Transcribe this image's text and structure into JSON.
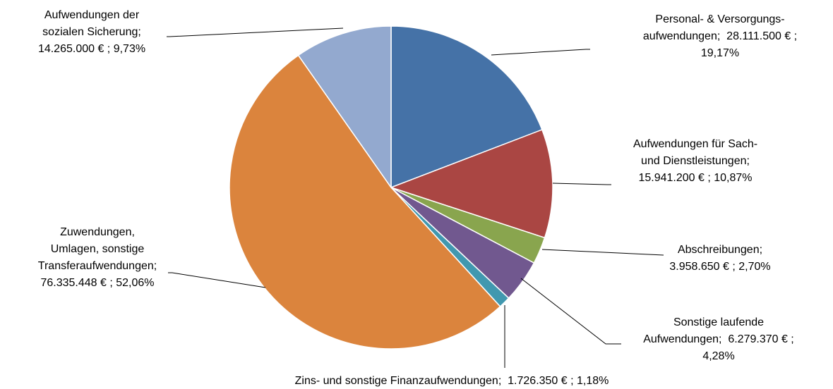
{
  "chart_data": {
    "type": "pie",
    "values": [
      28111500,
      15941200,
      3958650,
      6279370,
      1726350,
      76335448,
      14265000
    ],
    "colors": [
      "#4572a7",
      "#aa4643",
      "#89a54e",
      "#71588f",
      "#4198af",
      "#db843d",
      "#93a9cf"
    ],
    "value_labels": [
      [
        "Personal- & Versorgungs-",
        "aufwendungen;  28.111.500 € ;",
        "19,17%"
      ],
      [
        "Aufwendungen für Sach-",
        "und Dienstleistungen;",
        "15.941.200 € ; 10,87%"
      ],
      [
        "Abschreibungen;",
        "3.958.650 € ; 2,70%"
      ],
      [
        "Sonstige laufende",
        "Aufwendungen;  6.279.370 € ;",
        "4,28%"
      ],
      [
        "Zins- und sonstige Finanzaufwendungen;  1.726.350 € ; 1,18%"
      ],
      [
        "Zuwendungen,",
        "Umlagen, sonstige",
        "Transferaufwendungen;",
        "76.335.448 € ; 52,06%"
      ],
      [
        "Aufwendungen der",
        "sozialen Sicherung;",
        "14.265.000 € ; 9,73%"
      ]
    ]
  }
}
